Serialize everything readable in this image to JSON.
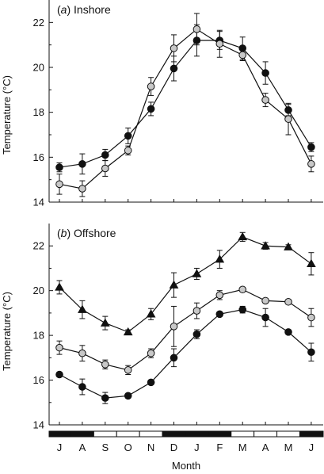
{
  "chart_data": [
    {
      "type": "line",
      "panel_letter": "a",
      "panel_name": "Inshore",
      "ylabel": "Temperature (°C)",
      "ylim": [
        14,
        23
      ],
      "yticks": [
        14,
        16,
        18,
        20,
        22
      ],
      "categories": [
        "J",
        "A",
        "S",
        "O",
        "N",
        "D",
        "J",
        "F",
        "M",
        "A",
        "M",
        "J"
      ],
      "series": [
        {
          "marker": "circle-black",
          "values": [
            15.55,
            15.7,
            16.1,
            16.95,
            18.15,
            19.95,
            21.2,
            21.2,
            20.85,
            19.75,
            18.1,
            16.45
          ],
          "error": [
            0.2,
            0.45,
            0.25,
            0.35,
            0.3,
            0.55,
            0.7,
            0.4,
            0.5,
            0.5,
            0.25,
            0.2
          ]
        },
        {
          "marker": "circle-grey",
          "values": [
            14.8,
            14.6,
            15.5,
            16.3,
            19.15,
            20.85,
            21.7,
            21.05,
            20.55,
            18.55,
            17.7,
            15.7
          ],
          "error": [
            0.45,
            0.35,
            0.35,
            0.2,
            0.4,
            0.6,
            0.7,
            0.6,
            0.25,
            0.3,
            0.7,
            0.35
          ]
        }
      ]
    },
    {
      "type": "line",
      "panel_letter": "b",
      "panel_name": "Offshore",
      "ylabel": "Temperature (°C)",
      "ylim": [
        14,
        23
      ],
      "yticks": [
        14,
        16,
        18,
        20,
        22
      ],
      "xlabel": "Month",
      "categories": [
        "J",
        "A",
        "S",
        "O",
        "N",
        "D",
        "J",
        "F",
        "M",
        "A",
        "M",
        "J"
      ],
      "series": [
        {
          "marker": "triangle-black",
          "values": [
            20.15,
            19.15,
            18.55,
            18.15,
            18.95,
            20.25,
            20.75,
            21.4,
            22.4,
            22.0,
            21.95,
            21.2
          ],
          "error": [
            0.3,
            0.4,
            0.3,
            0.1,
            0.25,
            0.55,
            0.25,
            0.4,
            0.2,
            0.15,
            0.1,
            0.5
          ]
        },
        {
          "marker": "circle-grey",
          "values": [
            17.45,
            17.2,
            16.7,
            16.45,
            17.2,
            18.4,
            19.1,
            19.8,
            20.05,
            19.55,
            19.5,
            18.8
          ],
          "error": [
            0.3,
            0.35,
            0.2,
            0.2,
            0.2,
            0.9,
            0.35,
            0.2,
            0.1,
            0.1,
            0.1,
            0.4
          ]
        },
        {
          "marker": "circle-black",
          "values": [
            16.25,
            15.7,
            15.2,
            15.3,
            15.9,
            17.0,
            18.05,
            18.95,
            19.15,
            18.8,
            18.15,
            17.25
          ],
          "error": [
            0.1,
            0.35,
            0.25,
            0.1,
            0.1,
            0.4,
            0.2,
            0.1,
            0.15,
            0.4,
            0.1,
            0.4
          ]
        }
      ]
    }
  ],
  "season_bar": [
    "dark",
    "dark",
    "light",
    "light",
    "light",
    "dark",
    "dark",
    "dark",
    "light",
    "light",
    "light",
    "dark"
  ],
  "colors": {
    "line": "#111111",
    "marker_black": "#111111",
    "marker_grey": "#c8c8c8",
    "season_dark": "#111111",
    "season_light": "#ffffff"
  }
}
